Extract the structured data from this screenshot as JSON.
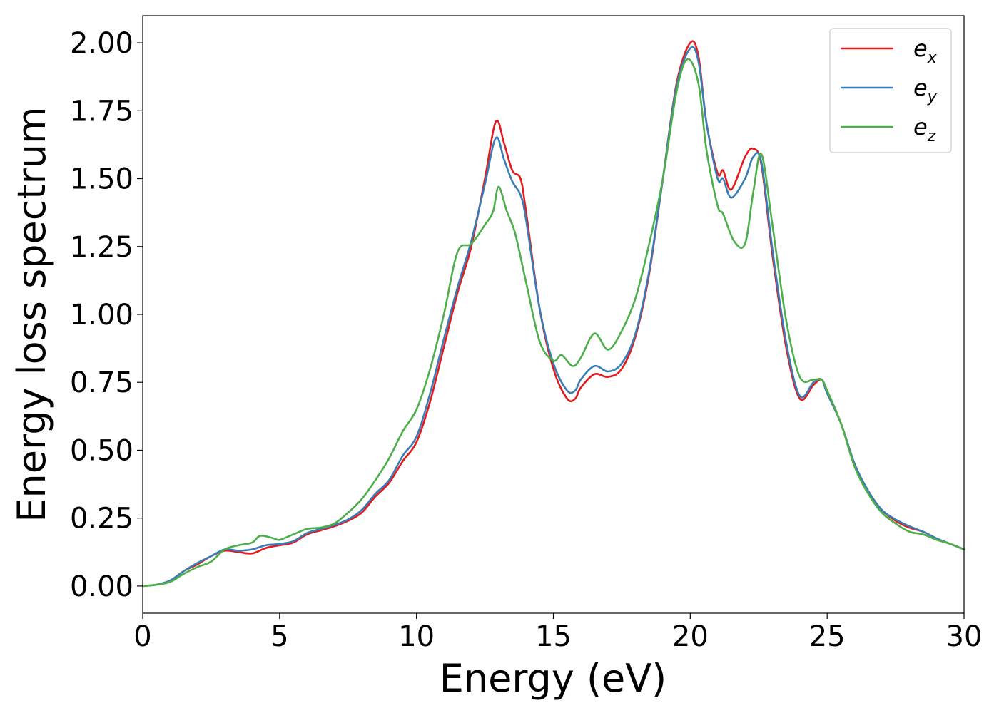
{
  "chart_data": {
    "type": "line",
    "xlabel": "Energy (eV)",
    "ylabel": "Energy loss spectrum",
    "xlim": [
      0,
      30
    ],
    "ylim": [
      -0.1,
      2.1
    ],
    "xticks": [
      0,
      5,
      10,
      15,
      20,
      25,
      30
    ],
    "xtick_labels": [
      "0",
      "5",
      "10",
      "15",
      "20",
      "25",
      "30"
    ],
    "yticks": [
      0,
      0.25,
      0.5,
      0.75,
      1.0,
      1.25,
      1.5,
      1.75,
      2.0
    ],
    "ytick_labels": [
      "0.00",
      "0.25",
      "0.50",
      "0.75",
      "1.00",
      "1.25",
      "1.50",
      "1.75",
      "2.00"
    ],
    "grid": false,
    "legend_position": "top-right",
    "series": [
      {
        "name": "e_x",
        "label_base": "e",
        "label_sub": "x",
        "color": "#e41a1c",
        "points": [
          [
            0,
            0
          ],
          [
            0.5,
            0.005
          ],
          [
            1,
            0.02
          ],
          [
            1.5,
            0.055
          ],
          [
            2,
            0.08
          ],
          [
            2.5,
            0.11
          ],
          [
            3,
            0.13
          ],
          [
            3.5,
            0.125
          ],
          [
            4,
            0.12
          ],
          [
            4.5,
            0.14
          ],
          [
            5,
            0.15
          ],
          [
            5.5,
            0.16
          ],
          [
            6,
            0.19
          ],
          [
            6.5,
            0.205
          ],
          [
            7,
            0.22
          ],
          [
            7.5,
            0.24
          ],
          [
            8,
            0.27
          ],
          [
            8.5,
            0.33
          ],
          [
            9,
            0.38
          ],
          [
            9.5,
            0.46
          ],
          [
            10,
            0.53
          ],
          [
            10.5,
            0.68
          ],
          [
            11,
            0.88
          ],
          [
            11.5,
            1.08
          ],
          [
            12,
            1.25
          ],
          [
            12.5,
            1.5
          ],
          [
            12.9,
            1.71
          ],
          [
            13.2,
            1.63
          ],
          [
            13.5,
            1.53
          ],
          [
            13.8,
            1.5
          ],
          [
            14,
            1.38
          ],
          [
            14.5,
            1.02
          ],
          [
            15,
            0.8
          ],
          [
            15.5,
            0.69
          ],
          [
            15.8,
            0.69
          ],
          [
            16,
            0.73
          ],
          [
            16.5,
            0.78
          ],
          [
            17,
            0.77
          ],
          [
            17.5,
            0.8
          ],
          [
            18,
            0.92
          ],
          [
            18.5,
            1.15
          ],
          [
            19,
            1.5
          ],
          [
            19.5,
            1.85
          ],
          [
            20,
            2.0
          ],
          [
            20.3,
            1.95
          ],
          [
            20.6,
            1.7
          ],
          [
            21,
            1.52
          ],
          [
            21.2,
            1.53
          ],
          [
            21.5,
            1.46
          ],
          [
            22,
            1.58
          ],
          [
            22.3,
            1.61
          ],
          [
            22.6,
            1.55
          ],
          [
            23,
            1.22
          ],
          [
            23.5,
            0.88
          ],
          [
            24,
            0.69
          ],
          [
            24.5,
            0.74
          ],
          [
            24.8,
            0.76
          ],
          [
            25,
            0.71
          ],
          [
            25.5,
            0.6
          ],
          [
            26,
            0.45
          ],
          [
            26.5,
            0.35
          ],
          [
            27,
            0.28
          ],
          [
            27.5,
            0.24
          ],
          [
            28,
            0.215
          ],
          [
            28.5,
            0.2
          ],
          [
            29,
            0.175
          ],
          [
            29.5,
            0.155
          ],
          [
            30,
            0.135
          ]
        ]
      },
      {
        "name": "e_y",
        "label_base": "e",
        "label_sub": "y",
        "color": "#377eb8",
        "points": [
          [
            0,
            0
          ],
          [
            0.5,
            0.005
          ],
          [
            1,
            0.02
          ],
          [
            1.5,
            0.055
          ],
          [
            2,
            0.085
          ],
          [
            2.5,
            0.11
          ],
          [
            3,
            0.135
          ],
          [
            3.5,
            0.13
          ],
          [
            4,
            0.135
          ],
          [
            4.5,
            0.15
          ],
          [
            5,
            0.155
          ],
          [
            5.5,
            0.165
          ],
          [
            6,
            0.195
          ],
          [
            6.5,
            0.21
          ],
          [
            7,
            0.225
          ],
          [
            7.5,
            0.245
          ],
          [
            8,
            0.28
          ],
          [
            8.5,
            0.34
          ],
          [
            9,
            0.39
          ],
          [
            9.5,
            0.48
          ],
          [
            10,
            0.55
          ],
          [
            10.5,
            0.71
          ],
          [
            11,
            0.91
          ],
          [
            11.5,
            1.1
          ],
          [
            12,
            1.27
          ],
          [
            12.5,
            1.48
          ],
          [
            12.9,
            1.65
          ],
          [
            13.2,
            1.57
          ],
          [
            13.5,
            1.49
          ],
          [
            13.8,
            1.44
          ],
          [
            14,
            1.35
          ],
          [
            14.5,
            1.02
          ],
          [
            15,
            0.82
          ],
          [
            15.5,
            0.72
          ],
          [
            15.8,
            0.72
          ],
          [
            16,
            0.76
          ],
          [
            16.5,
            0.81
          ],
          [
            17,
            0.79
          ],
          [
            17.5,
            0.82
          ],
          [
            18,
            0.93
          ],
          [
            18.5,
            1.16
          ],
          [
            19,
            1.5
          ],
          [
            19.5,
            1.84
          ],
          [
            20,
            1.98
          ],
          [
            20.3,
            1.93
          ],
          [
            20.6,
            1.7
          ],
          [
            21,
            1.5
          ],
          [
            21.2,
            1.5
          ],
          [
            21.5,
            1.43
          ],
          [
            22,
            1.5
          ],
          [
            22.3,
            1.58
          ],
          [
            22.6,
            1.56
          ],
          [
            23,
            1.24
          ],
          [
            23.5,
            0.9
          ],
          [
            24,
            0.7
          ],
          [
            24.5,
            0.75
          ],
          [
            24.8,
            0.76
          ],
          [
            25,
            0.71
          ],
          [
            25.5,
            0.6
          ],
          [
            26,
            0.45
          ],
          [
            26.5,
            0.35
          ],
          [
            27,
            0.28
          ],
          [
            27.5,
            0.245
          ],
          [
            28,
            0.22
          ],
          [
            28.5,
            0.2
          ],
          [
            29,
            0.175
          ],
          [
            29.5,
            0.155
          ],
          [
            30,
            0.135
          ]
        ]
      },
      {
        "name": "e_z",
        "label_base": "e",
        "label_sub": "z",
        "color": "#4daf4a",
        "points": [
          [
            0,
            0
          ],
          [
            0.5,
            0.005
          ],
          [
            1,
            0.015
          ],
          [
            1.5,
            0.045
          ],
          [
            2,
            0.07
          ],
          [
            2.5,
            0.09
          ],
          [
            3,
            0.135
          ],
          [
            3.5,
            0.15
          ],
          [
            4,
            0.16
          ],
          [
            4.3,
            0.185
          ],
          [
            4.8,
            0.175
          ],
          [
            5,
            0.17
          ],
          [
            5.5,
            0.19
          ],
          [
            6,
            0.21
          ],
          [
            6.5,
            0.215
          ],
          [
            7,
            0.23
          ],
          [
            7.5,
            0.27
          ],
          [
            8,
            0.32
          ],
          [
            8.5,
            0.39
          ],
          [
            9,
            0.47
          ],
          [
            9.5,
            0.57
          ],
          [
            10,
            0.65
          ],
          [
            10.5,
            0.8
          ],
          [
            11,
            1.0
          ],
          [
            11.5,
            1.23
          ],
          [
            12,
            1.26
          ],
          [
            12.5,
            1.33
          ],
          [
            12.8,
            1.38
          ],
          [
            13,
            1.47
          ],
          [
            13.3,
            1.38
          ],
          [
            13.6,
            1.3
          ],
          [
            14,
            1.12
          ],
          [
            14.5,
            0.9
          ],
          [
            15,
            0.83
          ],
          [
            15.3,
            0.85
          ],
          [
            15.7,
            0.81
          ],
          [
            16,
            0.84
          ],
          [
            16.5,
            0.93
          ],
          [
            17,
            0.87
          ],
          [
            17.5,
            0.94
          ],
          [
            18,
            1.06
          ],
          [
            18.5,
            1.26
          ],
          [
            19,
            1.5
          ],
          [
            19.5,
            1.82
          ],
          [
            19.9,
            1.94
          ],
          [
            20.3,
            1.85
          ],
          [
            20.6,
            1.6
          ],
          [
            21,
            1.4
          ],
          [
            21.2,
            1.37
          ],
          [
            21.6,
            1.27
          ],
          [
            22,
            1.26
          ],
          [
            22.3,
            1.45
          ],
          [
            22.6,
            1.59
          ],
          [
            23,
            1.33
          ],
          [
            23.5,
            0.98
          ],
          [
            24,
            0.77
          ],
          [
            24.5,
            0.76
          ],
          [
            24.8,
            0.76
          ],
          [
            25,
            0.72
          ],
          [
            25.5,
            0.6
          ],
          [
            26,
            0.44
          ],
          [
            26.5,
            0.34
          ],
          [
            27,
            0.27
          ],
          [
            27.5,
            0.23
          ],
          [
            28,
            0.2
          ],
          [
            28.5,
            0.19
          ],
          [
            29,
            0.17
          ],
          [
            29.5,
            0.155
          ],
          [
            30,
            0.135
          ]
        ]
      }
    ]
  }
}
